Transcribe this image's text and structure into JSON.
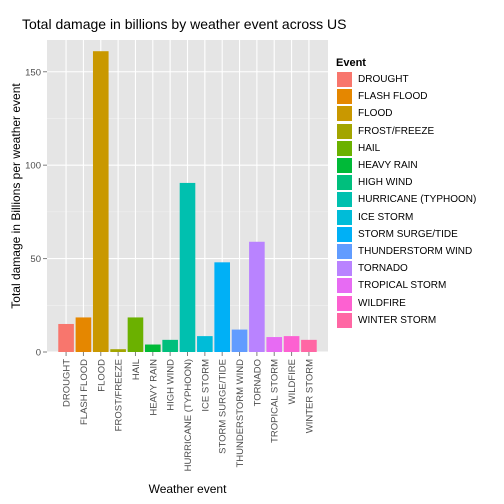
{
  "chart_data": {
    "type": "bar",
    "title": "Total damage in billions by weather event across US",
    "xlabel": "Weather event",
    "ylabel": "Total damage in Billions per weather event",
    "ylim": [
      0,
      167
    ],
    "yticks": [
      0,
      50,
      100,
      150
    ],
    "grid": true,
    "legend_title": "Event",
    "legend_position": "right",
    "categories": [
      "DROUGHT",
      "FLASH FLOOD",
      "FLOOD",
      "FROST/FREEZE",
      "HAIL",
      "HEAVY RAIN",
      "HIGH WIND",
      "HURRICANE (TYPHOON)",
      "ICE STORM",
      "STORM SURGE/TIDE",
      "THUNDERSTORM WIND",
      "TORNADO",
      "TROPICAL STORM",
      "WILDFIRE",
      "WINTER STORM"
    ],
    "values": [
      15,
      18.5,
      161,
      1.5,
      18.5,
      4,
      6.5,
      90.5,
      8.5,
      48,
      12,
      59,
      8,
      8.5,
      6.5
    ],
    "colors": [
      "#F8766D",
      "#E58700",
      "#C99800",
      "#A3A500",
      "#6BB100",
      "#00BA38",
      "#00BF7D",
      "#00C0AF",
      "#00BCD8",
      "#00B0F6",
      "#619CFF",
      "#B983FF",
      "#E76BF3",
      "#FD61D1",
      "#FF67A4"
    ]
  }
}
